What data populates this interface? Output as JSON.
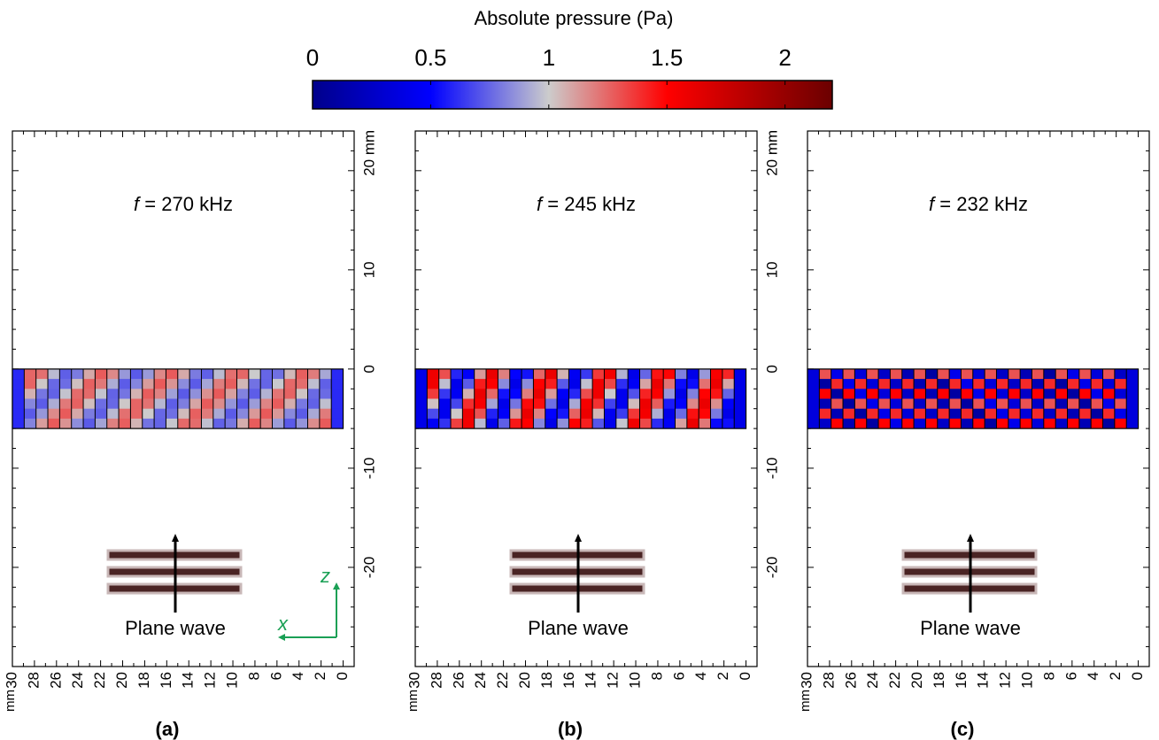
{
  "colorbar": {
    "title": "Absolute pressure (Pa)",
    "ticks": [
      "0",
      "0.5",
      "1",
      "1.5",
      "2"
    ],
    "tick_values": [
      0,
      0.5,
      1,
      1.5,
      2
    ],
    "range": [
      0,
      2.2
    ],
    "stops": [
      {
        "value": 0,
        "color": "#00008b"
      },
      {
        "value": 0.5,
        "color": "#0000ff"
      },
      {
        "value": 1.0,
        "color": "#cccccc"
      },
      {
        "value": 1.5,
        "color": "#ff0000"
      },
      {
        "value": 2.2,
        "color": "#6b0000"
      }
    ]
  },
  "axes": {
    "x_unit": "mm",
    "z_unit": "mm",
    "x_ticks": [
      "30",
      "28",
      "26",
      "24",
      "22",
      "20",
      "18",
      "16",
      "14",
      "12",
      "10",
      "8",
      "6",
      "4",
      "2",
      "0"
    ],
    "z_ticks": [
      "20 mm",
      "10",
      "0",
      "-10",
      "-20"
    ],
    "x_range_mm": [
      30,
      -1
    ],
    "z_range_mm": [
      -30,
      24
    ]
  },
  "panels": [
    {
      "id": "a",
      "label": "(a)",
      "freq_symbol": "f",
      "freq_text": " = 270 kHz",
      "intensity": 0.35,
      "pattern": "stripes",
      "show_axes_indicator": true
    },
    {
      "id": "b",
      "label": "(b)",
      "freq_symbol": "f",
      "freq_text": " = 245 kHz",
      "intensity": 0.85,
      "pattern": "stripes-strong",
      "show_axes_indicator": false
    },
    {
      "id": "c",
      "label": "(c)",
      "freq_symbol": "f",
      "freq_text": " = 232 kHz",
      "intensity": 0.9,
      "pattern": "checker",
      "show_axes_indicator": false
    }
  ],
  "inset": {
    "label": "Plane wave",
    "bar_color": "#4a2424",
    "bar_border": "#c9b8b8"
  },
  "axes_indicator": {
    "x_label": "x",
    "z_label": "z",
    "color": "#1aa055"
  }
}
